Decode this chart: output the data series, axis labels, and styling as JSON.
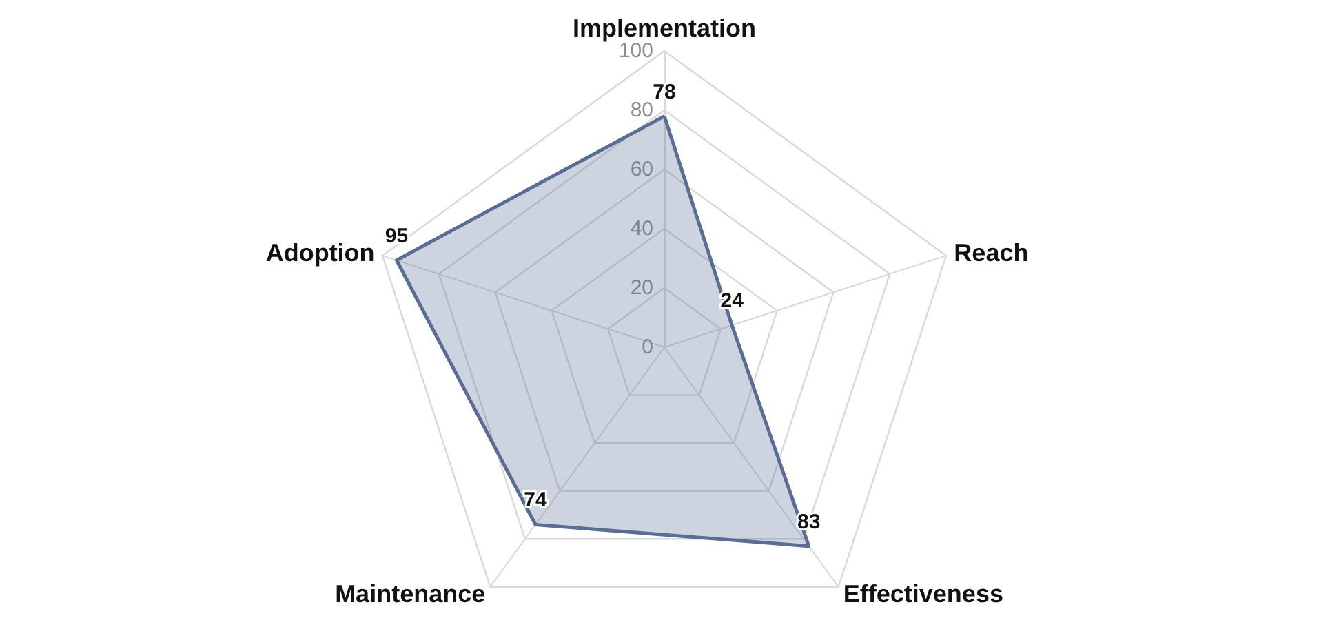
{
  "chart_data": {
    "type": "radar",
    "categories": [
      "Implementation",
      "Reach",
      "Effectiveness",
      "Maintenance",
      "Adoption"
    ],
    "series": [
      {
        "color": "#5b6d96",
        "values": [
          78,
          24,
          83,
          74,
          95
        ]
      }
    ],
    "ylim": [
      0,
      100
    ],
    "yticks": [
      0,
      20,
      40,
      60,
      80,
      100
    ],
    "grid": true,
    "data_labels": true,
    "marker": "none"
  }
}
